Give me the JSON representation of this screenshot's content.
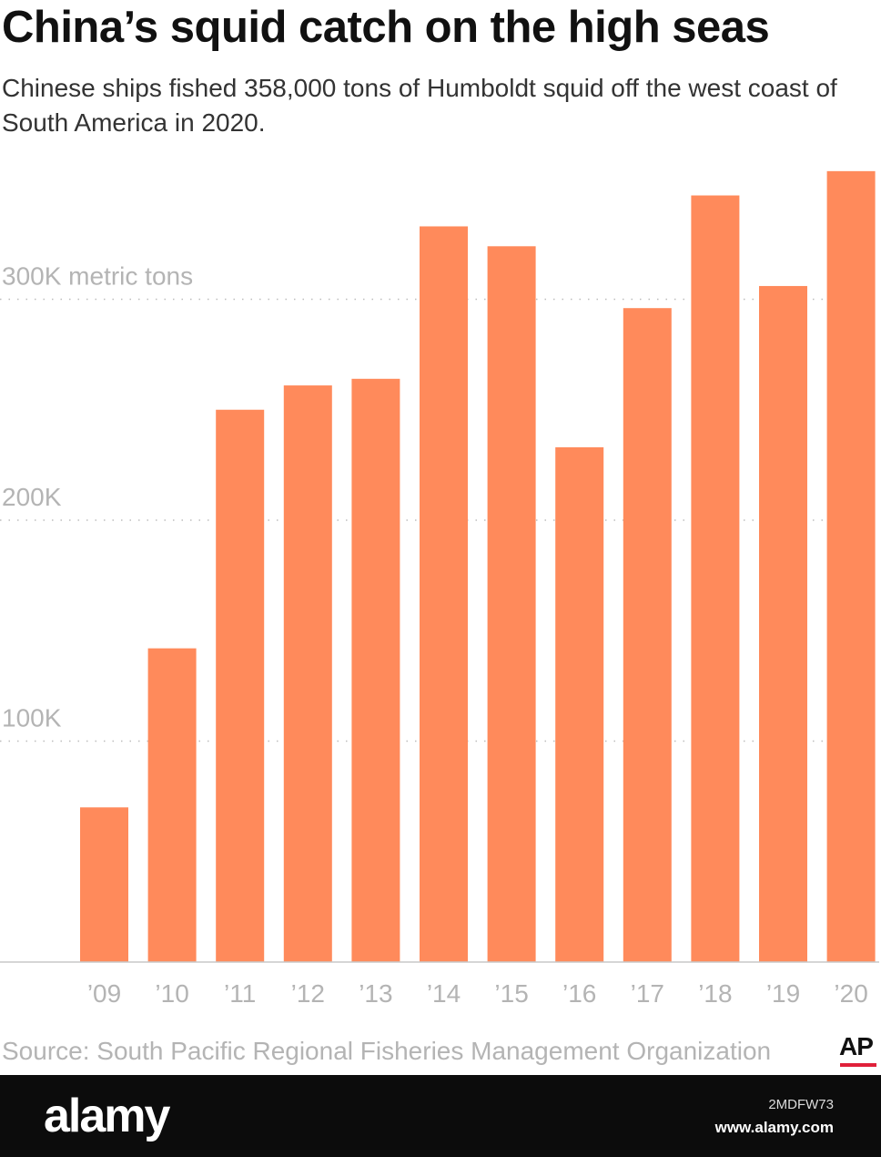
{
  "header": {
    "title": "China’s squid catch on the high seas",
    "subtitle": "Chinese ships fished 358,000 tons of Humboldt squid off the west coast of South America in 2020."
  },
  "chart_data": {
    "type": "bar",
    "categories": [
      "’09",
      "’10",
      "’11",
      "’12",
      "’13",
      "’14",
      "’15",
      "’16",
      "’17",
      "’18",
      "’19",
      "’20"
    ],
    "values": [
      70000,
      142000,
      250000,
      261000,
      264000,
      333000,
      324000,
      233000,
      296000,
      347000,
      306000,
      358000
    ],
    "ylim": [
      0,
      360000
    ],
    "yticks": [
      {
        "value": 100000,
        "label": "100K"
      },
      {
        "value": 200000,
        "label": "200K"
      },
      {
        "value": 300000,
        "label": "300K metric tons"
      }
    ],
    "grid": true,
    "bar_color": "#ff8a5b"
  },
  "footer": {
    "source": "Source: South Pacific Regional Fisheries Management Organization",
    "logo": "AP"
  },
  "stock_watermark": {
    "logo": "alamy",
    "image_id": "2MDFW73",
    "url": "www.alamy.com"
  }
}
